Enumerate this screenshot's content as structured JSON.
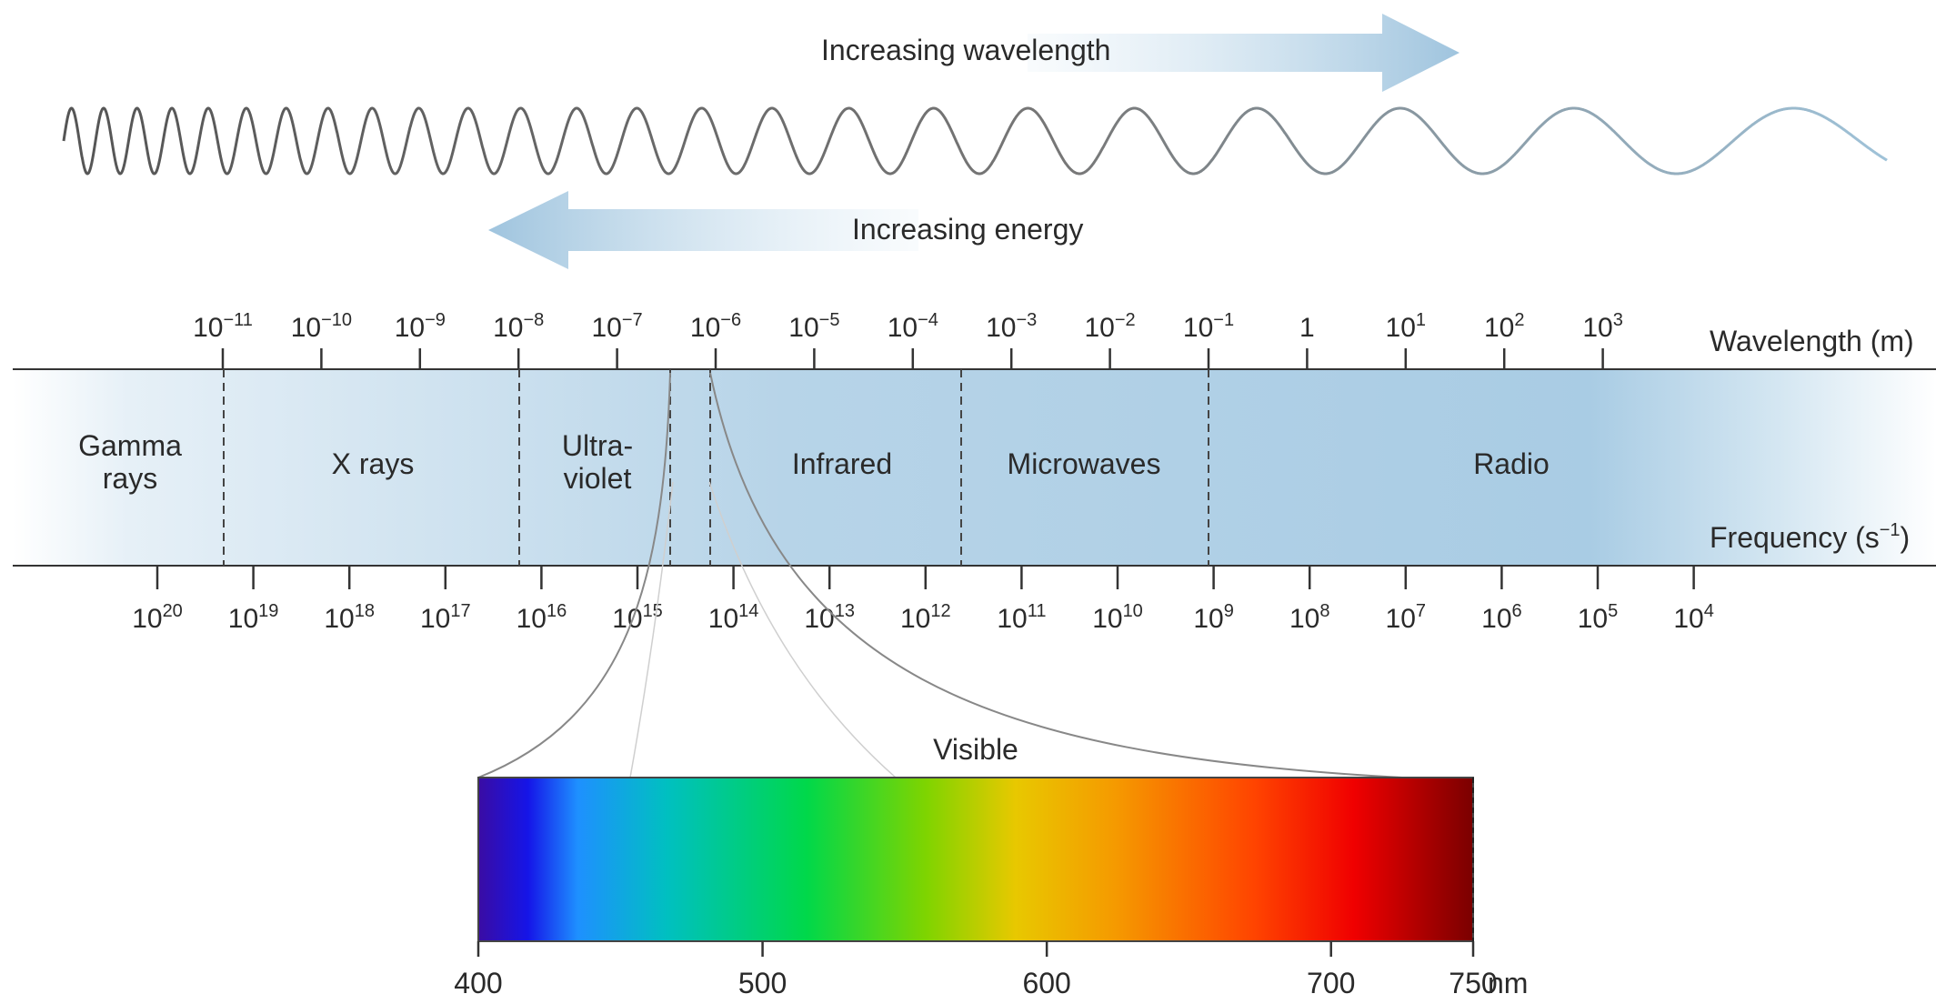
{
  "arrows": {
    "wavelength_label": "Increasing wavelength",
    "energy_label": "Increasing energy"
  },
  "wavelength_axis": {
    "label": "Wavelength (m)",
    "ticks": [
      {
        "base": "10",
        "exp": "−11"
      },
      {
        "base": "10",
        "exp": "−10"
      },
      {
        "base": "10",
        "exp": "−9"
      },
      {
        "base": "10",
        "exp": "−8"
      },
      {
        "base": "10",
        "exp": "−7"
      },
      {
        "base": "10",
        "exp": "−6"
      },
      {
        "base": "10",
        "exp": "−5"
      },
      {
        "base": "10",
        "exp": "−4"
      },
      {
        "base": "10",
        "exp": "−3"
      },
      {
        "base": "10",
        "exp": "−2"
      },
      {
        "base": "10",
        "exp": "−1"
      },
      {
        "base": "1",
        "exp": ""
      },
      {
        "base": "10",
        "exp": "1"
      },
      {
        "base": "10",
        "exp": "2"
      },
      {
        "base": "10",
        "exp": "3"
      }
    ]
  },
  "frequency_axis": {
    "label_base": "Frequency (s",
    "label_exp": "−1",
    "label_close": ")",
    "ticks": [
      {
        "base": "10",
        "exp": "20"
      },
      {
        "base": "10",
        "exp": "19"
      },
      {
        "base": "10",
        "exp": "18"
      },
      {
        "base": "10",
        "exp": "17"
      },
      {
        "base": "10",
        "exp": "16"
      },
      {
        "base": "10",
        "exp": "15"
      },
      {
        "base": "10",
        "exp": "14"
      },
      {
        "base": "10",
        "exp": "13"
      },
      {
        "base": "10",
        "exp": "12"
      },
      {
        "base": "10",
        "exp": "11"
      },
      {
        "base": "10",
        "exp": "10"
      },
      {
        "base": "10",
        "exp": "9"
      },
      {
        "base": "10",
        "exp": "8"
      },
      {
        "base": "10",
        "exp": "7"
      },
      {
        "base": "10",
        "exp": "6"
      },
      {
        "base": "10",
        "exp": "5"
      },
      {
        "base": "10",
        "exp": "4"
      }
    ]
  },
  "regions": [
    {
      "name": "gamma",
      "lines": [
        "Gamma",
        "rays"
      ]
    },
    {
      "name": "xray",
      "lines": [
        "X rays"
      ]
    },
    {
      "name": "uv",
      "lines": [
        "Ultra-",
        "violet"
      ]
    },
    {
      "name": "infrared",
      "lines": [
        "Infrared"
      ]
    },
    {
      "name": "microwaves",
      "lines": [
        "Microwaves"
      ]
    },
    {
      "name": "radio",
      "lines": [
        "Radio"
      ]
    }
  ],
  "visible": {
    "label": "Visible",
    "unit": "nm",
    "ticks": [
      "400",
      "500",
      "600",
      "700",
      "750"
    ],
    "colors": [
      "#3a0ca3",
      "#1515e8",
      "#1e90ff",
      "#00c0c0",
      "#00d84a",
      "#7fd400",
      "#e8c800",
      "#f59a00",
      "#ff4400",
      "#f00000",
      "#7a0000"
    ]
  }
}
